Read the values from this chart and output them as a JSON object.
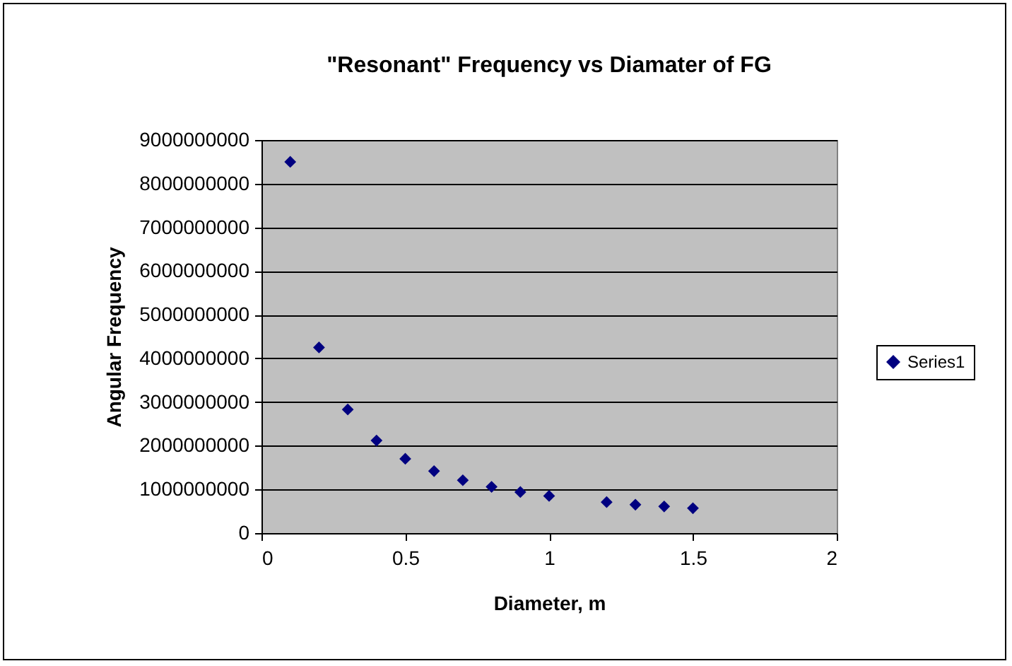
{
  "chart_data": {
    "type": "scatter",
    "title": "\"Resonant\" Frequency vs Diamater of FG",
    "xlabel": "Diameter, m",
    "ylabel": "Angular Frequency",
    "x": [
      0.1,
      0.2,
      0.3,
      0.4,
      0.5,
      0.6,
      0.7,
      0.8,
      0.9,
      1.0,
      1.2,
      1.3,
      1.4,
      1.5
    ],
    "series": [
      {
        "name": "Series1",
        "color": "#000080",
        "values": [
          8500000000,
          4250000000,
          2830000000,
          2120000000,
          1700000000,
          1420000000,
          1210000000,
          1060000000,
          940000000,
          850000000,
          710000000,
          650000000,
          610000000,
          570000000
        ]
      }
    ],
    "xlim": [
      0,
      2
    ],
    "xticks": [
      0,
      0.5,
      1,
      1.5,
      2
    ],
    "ylim": [
      0,
      9000000000
    ],
    "yticks": [
      0,
      1000000000,
      2000000000,
      3000000000,
      4000000000,
      5000000000,
      6000000000,
      7000000000,
      8000000000,
      9000000000
    ],
    "grid": "y",
    "legend": "right",
    "marker": "diamond"
  }
}
